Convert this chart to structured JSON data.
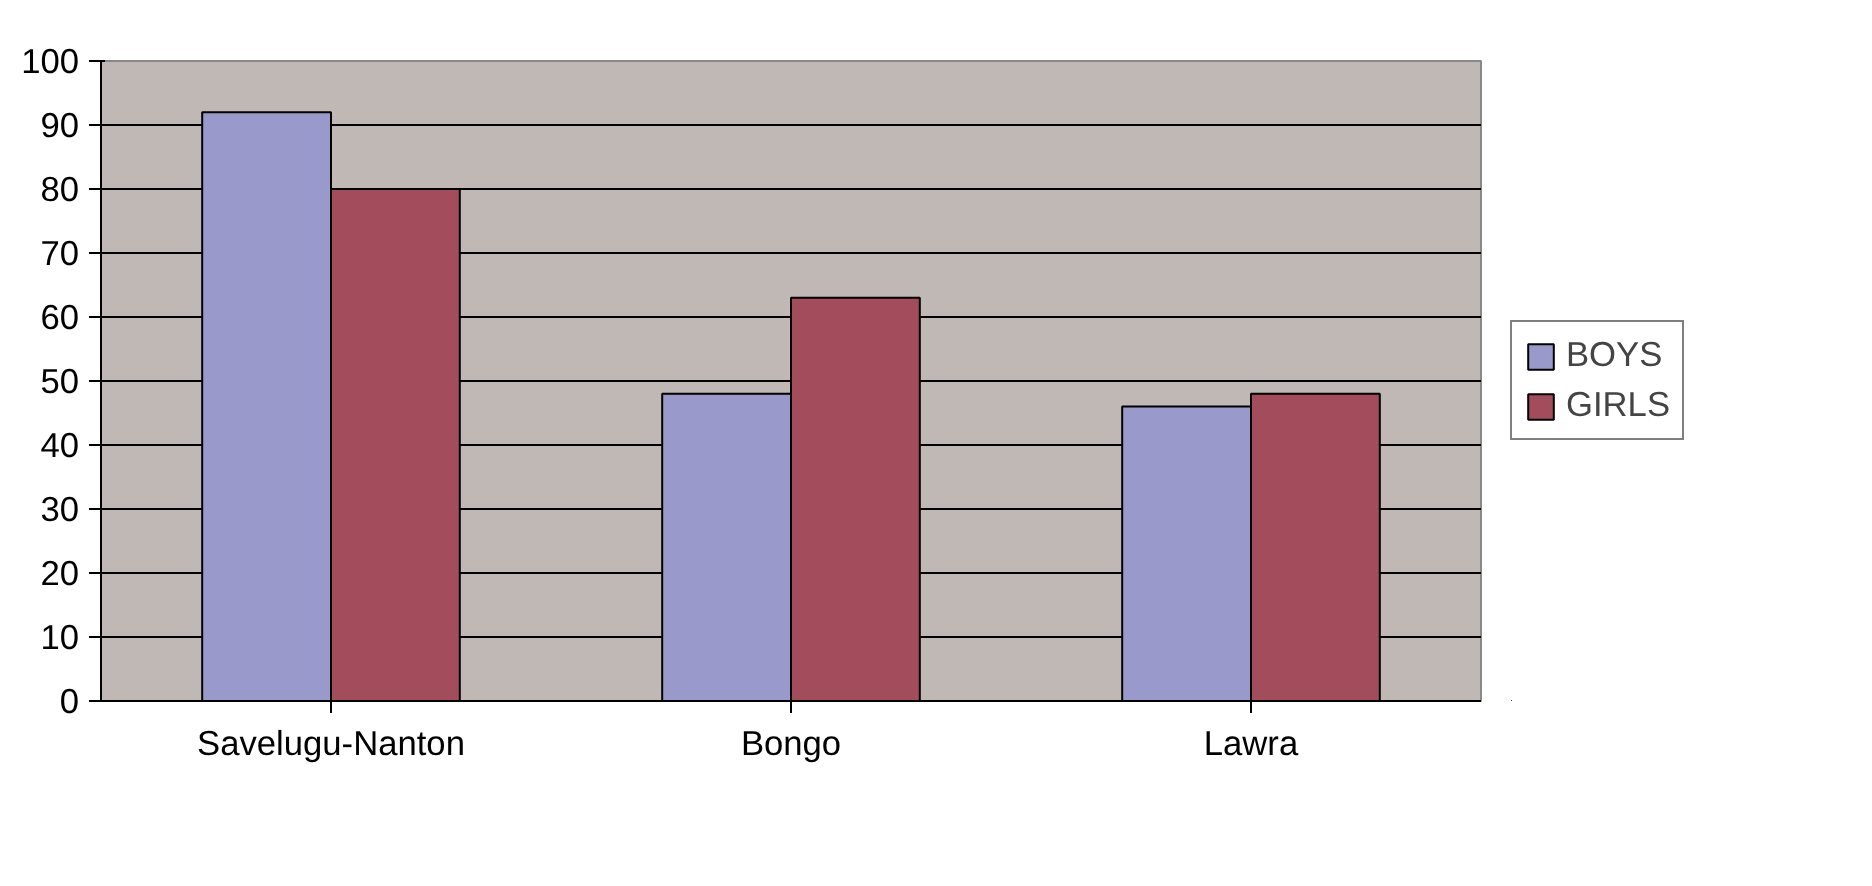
{
  "chart_data": {
    "type": "bar",
    "categories": [
      "Savelugu-Nanton",
      "Bongo",
      "Lawra"
    ],
    "series": [
      {
        "name": "BOYS",
        "color": "#9999cc",
        "values": [
          92,
          48,
          46
        ]
      },
      {
        "name": "GIRLS",
        "color": "#a34d5c",
        "values": [
          80,
          63,
          48
        ]
      }
    ],
    "ylim": [
      0,
      100
    ],
    "yticks": [
      0,
      10,
      20,
      30,
      40,
      50,
      60,
      70,
      80,
      90,
      100
    ],
    "grid": "y",
    "legend": "right"
  }
}
